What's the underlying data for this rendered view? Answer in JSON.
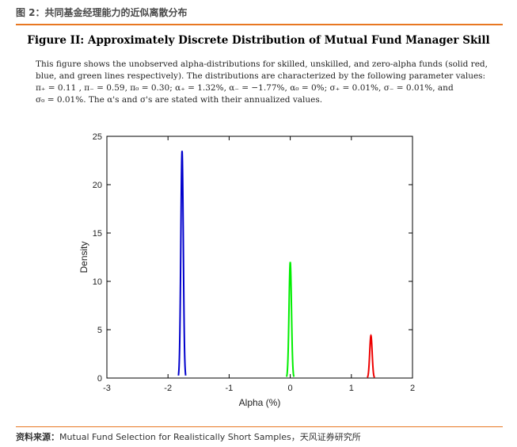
{
  "header": {
    "title": "图 2：共同基金经理能力的近似离散分布"
  },
  "figure": {
    "title": "Figure II: Approximately Discrete Distribution of Mutual Fund Manager Skill",
    "caption_lines": [
      "This figure shows the unobserved alpha-distributions for skilled, unskilled, and zero-alpha funds (solid red,",
      "blue, and green lines respectively). The distributions are characterized by the following parameter values:",
      "π₊ = 0.11 , π₋ = 0.59, π₀ = 0.30; α₊ = 1.32%, α₋ = −1.77%, α₀ = 0%; σ₊ = 0.01%, σ₋ = 0.01%, and",
      "σ₀ = 0.01%. The α's and σ's are stated with their annualized values."
    ]
  },
  "chart_data": {
    "type": "line",
    "xlabel": "Alpha (%)",
    "ylabel": "Density",
    "xlim": [
      -3,
      2
    ],
    "ylim": [
      0,
      25
    ],
    "xticks": [
      -3,
      -2,
      -1,
      0,
      1,
      2
    ],
    "yticks": [
      0,
      5,
      10,
      15,
      20,
      25
    ],
    "series": [
      {
        "center": -1.77,
        "peak": 23.5,
        "color": "#0000cc"
      },
      {
        "center": 0.0,
        "peak": 12.0,
        "color": "#00ee00"
      },
      {
        "center": 1.32,
        "peak": 4.4,
        "color": "#ee0000"
      }
    ]
  },
  "source": {
    "label": "资料来源：",
    "text": "Mutual Fund Selection for Realistically Short Samples，天风证券研究所"
  }
}
